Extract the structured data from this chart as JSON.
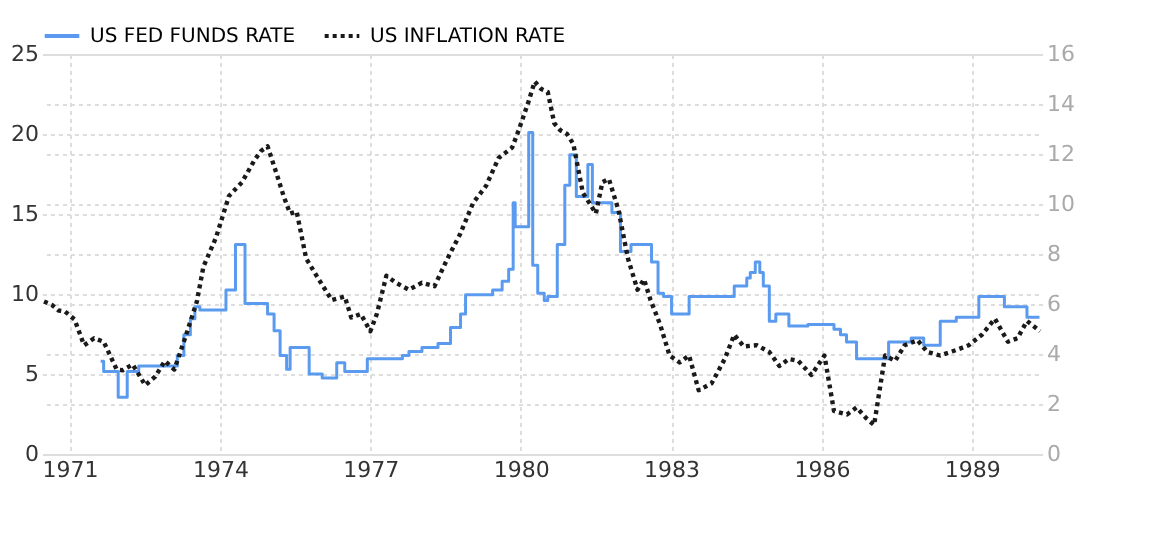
{
  "chart_data": {
    "type": "line",
    "xlim": [
      1970.45,
      1990.4
    ],
    "xticks": [
      1971,
      1974,
      1977,
      1980,
      1983,
      1986,
      1989
    ],
    "ylim": [
      0,
      25
    ],
    "yticks": [
      0,
      5,
      10,
      15,
      20,
      25
    ],
    "y2lim": [
      0,
      16
    ],
    "y2ticks": [
      0,
      2,
      4,
      6,
      8,
      10,
      12,
      14,
      16
    ],
    "grid": true,
    "legend": "top left",
    "series": [
      {
        "name": "US FED FUNDS RATE",
        "type": "step",
        "color": "#5b9bef",
        "line_style": "solid",
        "x": [
          1971.62,
          1971.68,
          1971.97,
          1972.15,
          1972.38,
          1973.15,
          1973.28,
          1973.41,
          1973.5,
          1973.6,
          1974.12,
          1974.31,
          1974.5,
          1974.95,
          1975.08,
          1975.2,
          1975.33,
          1975.4,
          1975.78,
          1976.04,
          1976.33,
          1976.49,
          1976.94,
          1977.64,
          1977.77,
          1978.03,
          1978.35,
          1978.6,
          1978.8,
          1978.9,
          1979.44,
          1979.63,
          1979.76,
          1979.85,
          1979.89,
          1980.16,
          1980.24,
          1980.34,
          1980.47,
          1980.54,
          1980.73,
          1980.88,
          1980.98,
          1981.11,
          1981.34,
          1981.43,
          1981.82,
          1981.99,
          1982.2,
          1982.61,
          1982.74,
          1982.85,
          1983.01,
          1983.36,
          1984.26,
          1984.51,
          1984.58,
          1984.68,
          1984.77,
          1984.84,
          1984.96,
          1985.09,
          1985.35,
          1985.73,
          1986.25,
          1986.38,
          1986.5,
          1986.7,
          1987.34,
          1987.79,
          1988.04,
          1988.37,
          1988.69,
          1989.14,
          1989.65,
          1990.1,
          1990.35
        ],
        "values": [
          5.8,
          5.15,
          3.55,
          5.15,
          5.5,
          6.15,
          7.45,
          8.45,
          9.2,
          9.0,
          10.25,
          13.1,
          9.4,
          8.75,
          7.7,
          6.15,
          5.3,
          6.65,
          5.0,
          4.75,
          5.7,
          5.15,
          5.95,
          6.15,
          6.4,
          6.65,
          6.9,
          7.9,
          8.75,
          9.95,
          10.25,
          10.8,
          11.55,
          15.7,
          14.2,
          20.1,
          11.8,
          10.05,
          9.6,
          9.85,
          13.1,
          16.8,
          18.7,
          16.1,
          18.1,
          15.7,
          15.1,
          12.65,
          13.1,
          12.0,
          10.05,
          9.85,
          8.75,
          9.85,
          10.5,
          11.0,
          11.35,
          12.0,
          11.35,
          10.5,
          8.3,
          8.75,
          8.0,
          8.1,
          7.8,
          7.45,
          7.0,
          5.95,
          7.0,
          7.25,
          6.8,
          8.3,
          8.55,
          9.85,
          9.2,
          8.55,
          8.55
        ]
      },
      {
        "name": "US INFLATION RATE",
        "axis": "y2",
        "color": "#1a1a1a",
        "line_style": "dotted",
        "x": [
          1970.49,
          1970.65,
          1970.78,
          1970.91,
          1971.1,
          1971.29,
          1971.49,
          1971.68,
          1971.94,
          1972.06,
          1972.26,
          1972.51,
          1972.71,
          1972.9,
          1973.09,
          1973.28,
          1973.54,
          1973.67,
          1973.92,
          1974.18,
          1974.44,
          1974.69,
          1974.82,
          1974.95,
          1975.14,
          1975.27,
          1975.4,
          1975.53,
          1975.72,
          1975.97,
          1976.23,
          1976.49,
          1976.62,
          1976.81,
          1977.0,
          1977.13,
          1977.32,
          1977.51,
          1977.77,
          1978.03,
          1978.28,
          1978.54,
          1978.79,
          1979.05,
          1979.31,
          1979.56,
          1979.83,
          1979.96,
          1980.15,
          1980.28,
          1980.41,
          1980.54,
          1980.67,
          1980.79,
          1980.92,
          1981.05,
          1981.24,
          1981.37,
          1981.5,
          1981.63,
          1981.76,
          1981.95,
          1982.14,
          1982.33,
          1982.46,
          1982.59,
          1982.78,
          1982.97,
          1983.17,
          1983.36,
          1983.55,
          1983.81,
          1984.07,
          1984.26,
          1984.45,
          1984.71,
          1984.96,
          1985.16,
          1985.35,
          1985.54,
          1985.8,
          1986.06,
          1986.25,
          1986.51,
          1986.7,
          1986.89,
          1987.05,
          1987.27,
          1987.47,
          1987.66,
          1987.92,
          1988.11,
          1988.37,
          1988.69,
          1988.94,
          1989.2,
          1989.46,
          1989.72,
          1989.91,
          1990.1,
          1990.36
        ],
        "values": [
          6.1,
          5.96,
          5.74,
          5.7,
          5.38,
          4.35,
          4.63,
          4.49,
          3.38,
          3.35,
          3.58,
          2.75,
          3.1,
          3.72,
          3.38,
          4.49,
          6.1,
          7.49,
          8.65,
          10.32,
          10.87,
          11.76,
          12.12,
          12.31,
          11.15,
          10.32,
          9.62,
          9.7,
          7.82,
          6.99,
          6.16,
          6.3,
          5.46,
          5.6,
          4.91,
          5.6,
          7.13,
          6.85,
          6.57,
          6.85,
          6.71,
          7.82,
          8.79,
          10.04,
          10.73,
          11.84,
          12.26,
          12.95,
          14.06,
          14.9,
          14.6,
          14.48,
          13.23,
          12.95,
          12.81,
          12.4,
          10.45,
          10.04,
          9.62,
          10.87,
          11.0,
          9.76,
          7.82,
          6.57,
          6.99,
          6.16,
          5.19,
          3.94,
          3.66,
          3.94,
          2.55,
          2.83,
          3.8,
          4.77,
          4.3,
          4.35,
          4.08,
          3.52,
          3.8,
          3.72,
          3.16,
          3.94,
          1.72,
          1.58,
          1.86,
          1.44,
          1.16,
          3.94,
          3.72,
          4.35,
          4.55,
          4.08,
          3.94,
          4.16,
          4.35,
          4.77,
          5.41,
          4.49,
          4.63,
          5.32,
          4.91
        ]
      }
    ]
  }
}
